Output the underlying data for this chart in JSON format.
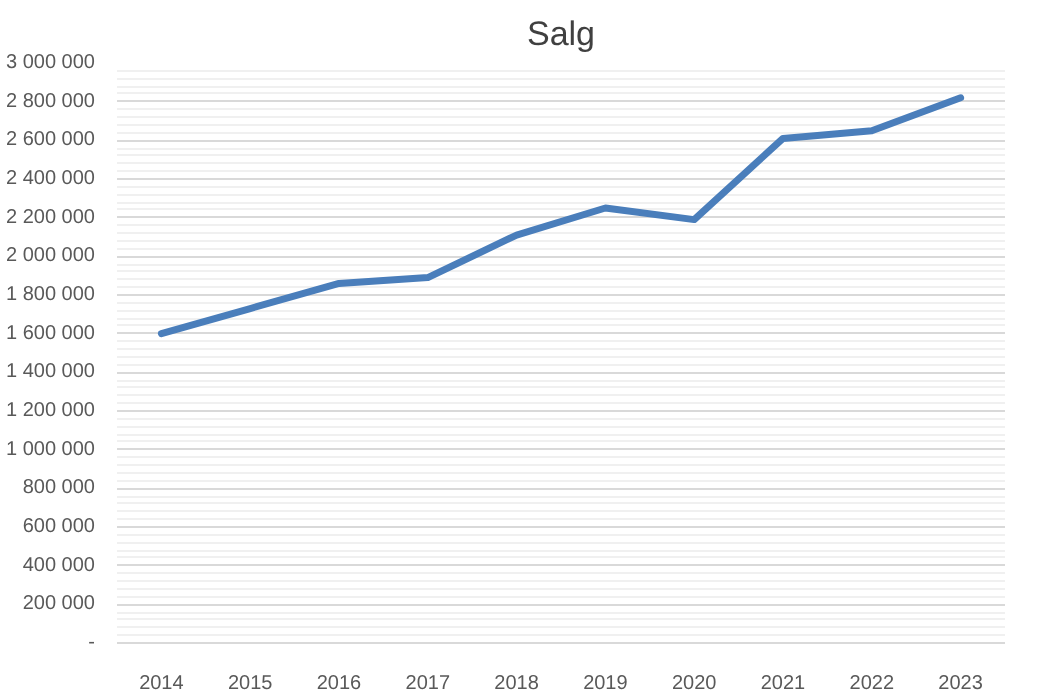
{
  "chart_data": {
    "type": "line",
    "title": "Salg",
    "categories": [
      "2014",
      "2015",
      "2016",
      "2017",
      "2018",
      "2019",
      "2020",
      "2021",
      "2022",
      "2023"
    ],
    "series": [
      {
        "color": "#4a7ebb",
        "values": [
          1600000,
          1730000,
          1860000,
          1890000,
          2110000,
          2250000,
          2190000,
          2610000,
          2650000,
          2820000
        ]
      }
    ],
    "ylim": [
      0,
      3000000
    ],
    "yticks": [
      {
        "value": 0,
        "label": "-"
      },
      {
        "value": 200000,
        "label": "200 000"
      },
      {
        "value": 400000,
        "label": "400 000"
      },
      {
        "value": 600000,
        "label": "600 000"
      },
      {
        "value": 800000,
        "label": "800 000"
      },
      {
        "value": 1000000,
        "label": "1 000 000"
      },
      {
        "value": 1200000,
        "label": "1 200 000"
      },
      {
        "value": 1400000,
        "label": "1 400 000"
      },
      {
        "value": 1600000,
        "label": "1 600 000"
      },
      {
        "value": 1800000,
        "label": "1 800 000"
      },
      {
        "value": 2000000,
        "label": "2 000 000"
      },
      {
        "value": 2200000,
        "label": "2 200 000"
      },
      {
        "value": 2400000,
        "label": "2 400 000"
      },
      {
        "value": 2600000,
        "label": "2 600 000"
      },
      {
        "value": 2800000,
        "label": "2 800 000"
      },
      {
        "value": 3000000,
        "label": "3 000 000"
      }
    ],
    "grid": "y",
    "marker": "none",
    "line_style": "solid"
  }
}
